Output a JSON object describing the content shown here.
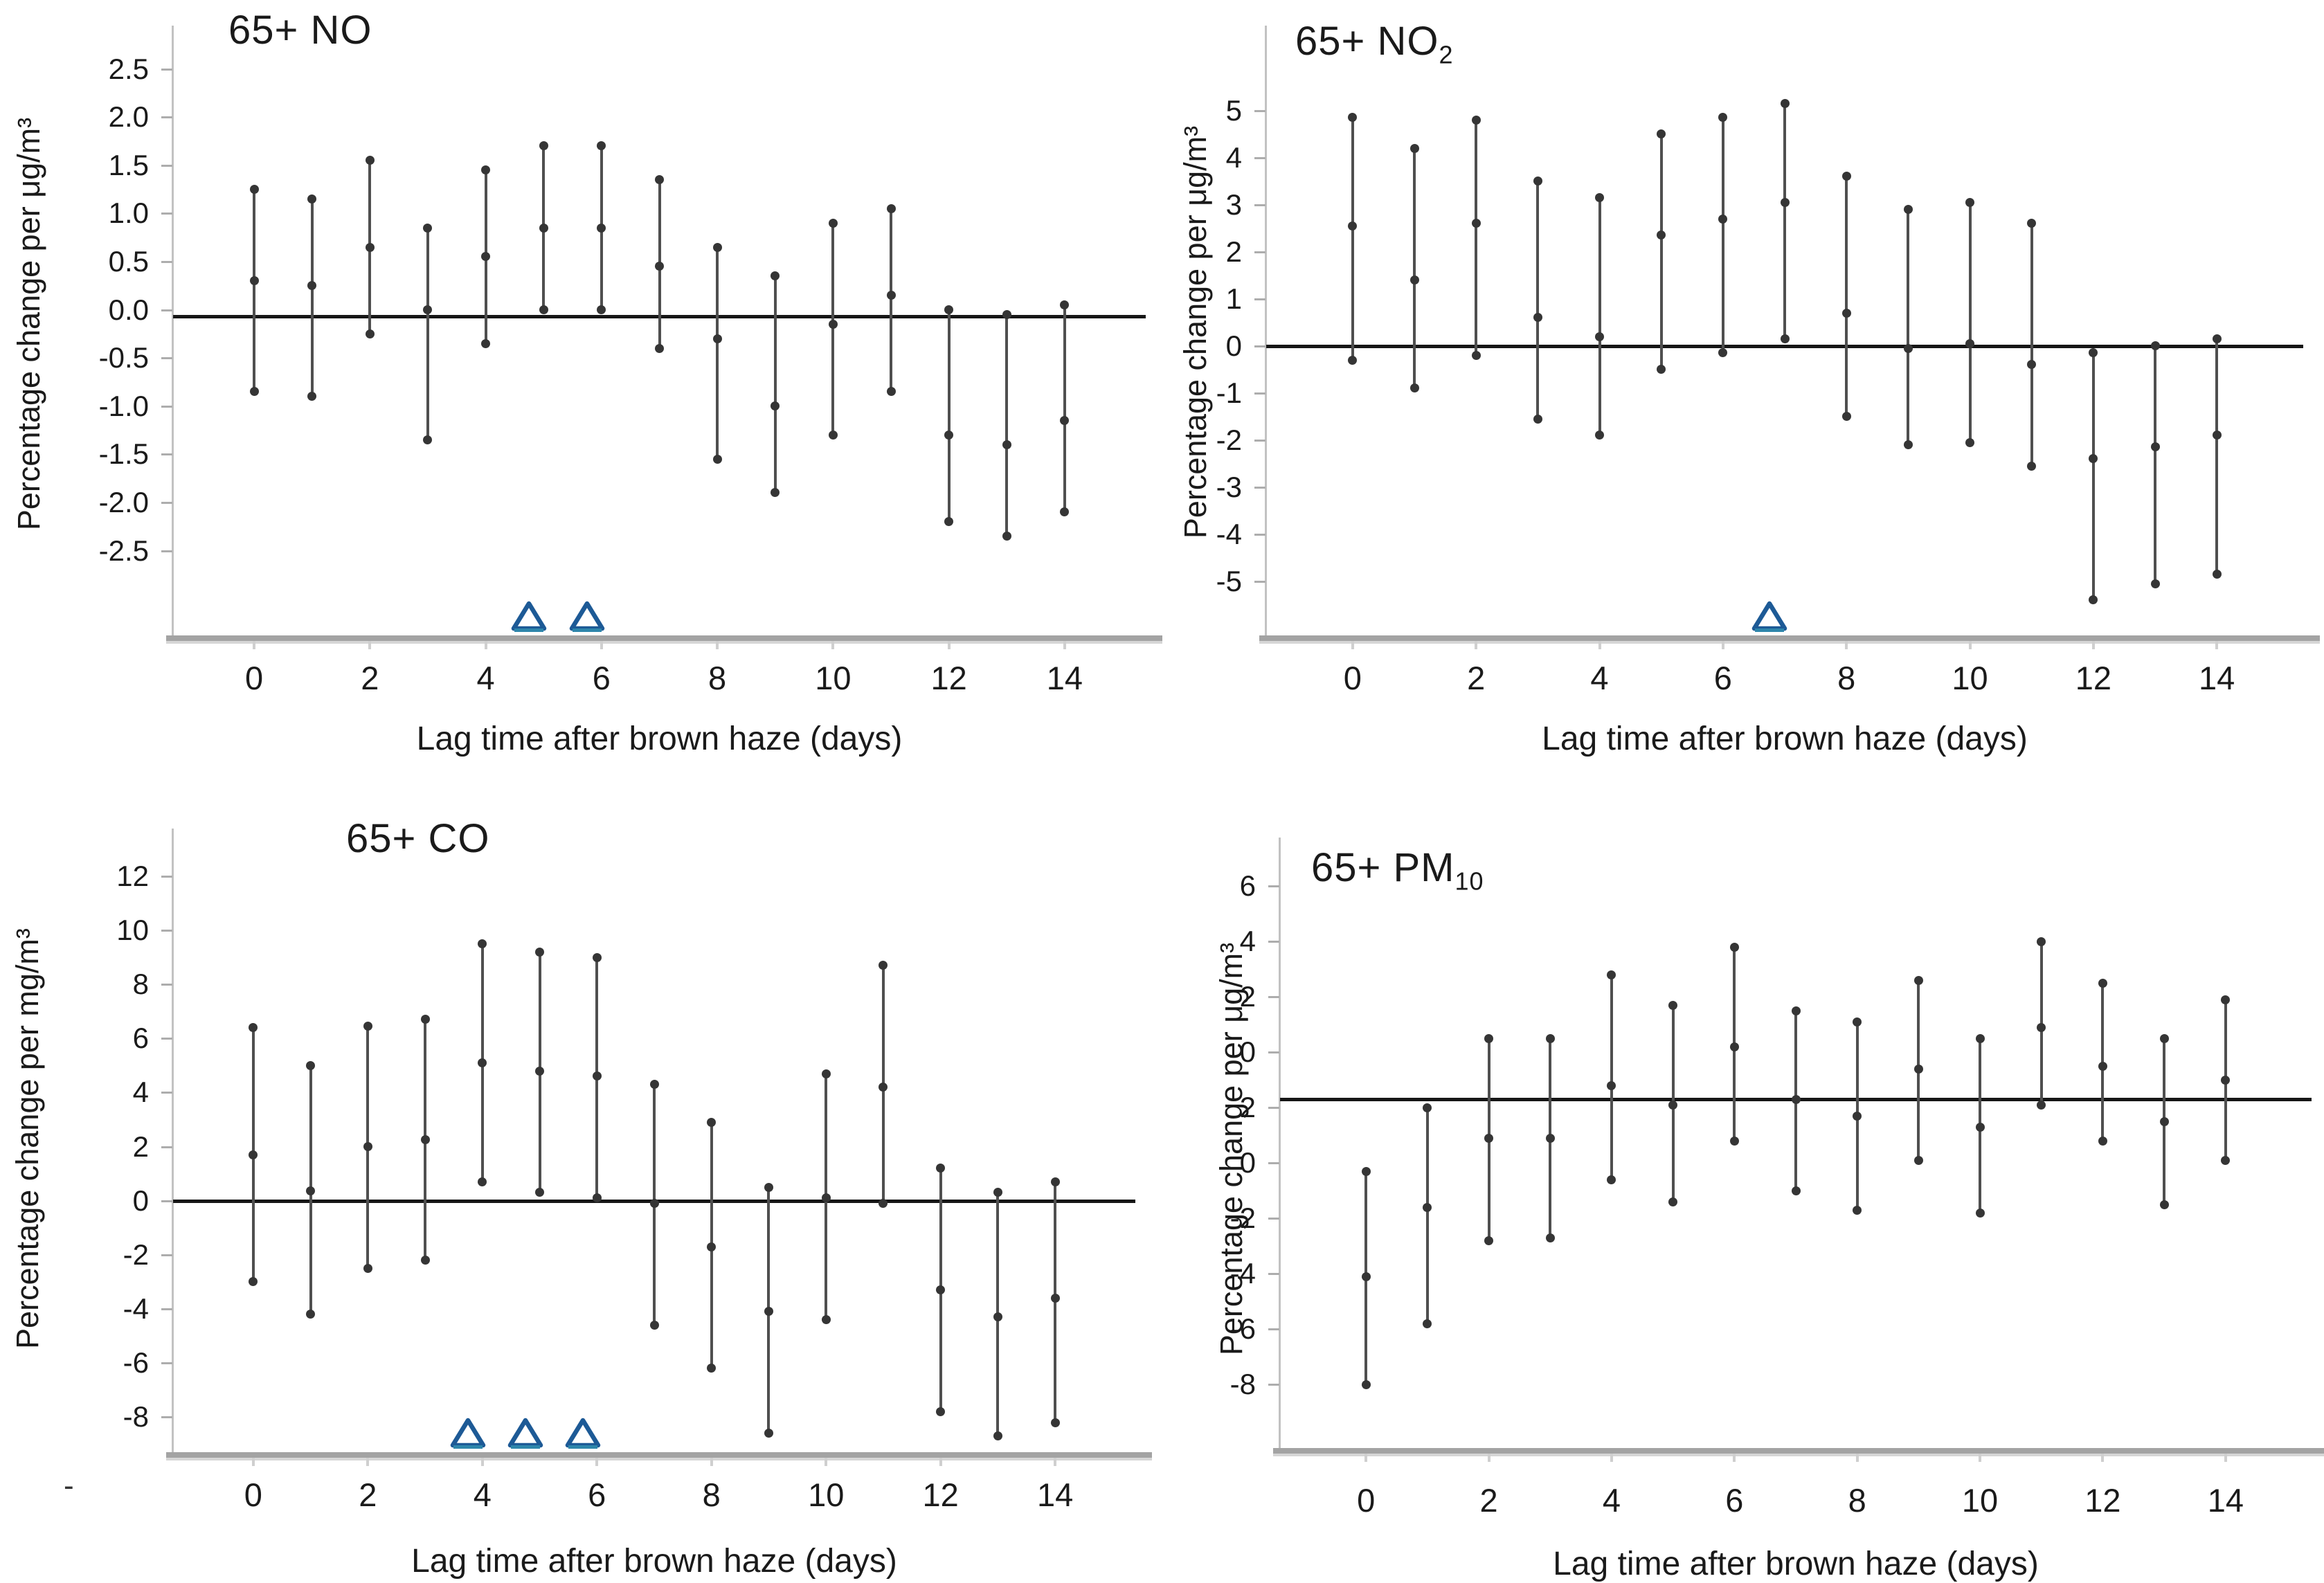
{
  "figure_title": "",
  "colors": {
    "triangle": "#1d5a96",
    "triangle_base": "#2e86ab",
    "bar": "#4f4f4f",
    "dot": "#353535",
    "zero_line": "#161616",
    "axis_band": "#a3a3a3",
    "axis_line": "#c2c2c2",
    "text": "#1a1a1a"
  },
  "chart_data": [
    {
      "type": "errorbar",
      "title": {
        "label": "65+ NO",
        "sub": ""
      },
      "ylabel": "Percentage change per μg/m³",
      "xlabel": "Lag time after brown haze (days)",
      "x": [
        0,
        1,
        2,
        3,
        4,
        5,
        6,
        7,
        8,
        9,
        10,
        11,
        12,
        13,
        14
      ],
      "upper": [
        1.25,
        1.15,
        1.55,
        0.85,
        1.45,
        1.7,
        1.7,
        1.35,
        0.65,
        0.35,
        0.9,
        1.05,
        0.0,
        -0.05,
        0.05
      ],
      "center": [
        0.3,
        0.25,
        0.65,
        0.0,
        0.55,
        0.85,
        0.85,
        0.45,
        -0.3,
        -1.0,
        -0.15,
        0.15,
        -1.3,
        -1.4,
        -1.15
      ],
      "lower": [
        -0.85,
        -0.9,
        -0.25,
        -1.35,
        -0.35,
        0.0,
        0.0,
        -0.4,
        -1.55,
        -1.9,
        -1.3,
        -0.85,
        -2.2,
        -2.35,
        -2.1
      ],
      "significant_lags": [
        5,
        6
      ],
      "yticks": [
        {
          "label": "2.5",
          "value": 2.5
        },
        {
          "label": "2.0",
          "value": 2.0
        },
        {
          "label": "1.5",
          "value": 1.5
        },
        {
          "label": "1.0",
          "value": 1.0
        },
        {
          "label": "0.5",
          "value": 0.5
        },
        {
          "label": "0.0",
          "value": 0.0
        },
        {
          "label": "-0.5",
          "value": -0.5
        },
        {
          "label": "-1.0",
          "value": -1.0
        },
        {
          "label": "-1.5",
          "value": -1.5
        },
        {
          "label": "-2.0",
          "value": -2.0
        },
        {
          "label": "-2.5",
          "value": -2.5
        }
      ],
      "xticks": [
        {
          "label": "0",
          "value": 0
        },
        {
          "label": "2",
          "value": 2
        },
        {
          "label": "4",
          "value": 4
        },
        {
          "label": "6",
          "value": 6
        },
        {
          "label": "8",
          "value": 8
        },
        {
          "label": "10",
          "value": 10
        },
        {
          "label": "12",
          "value": 12
        },
        {
          "label": "14",
          "value": 14
        }
      ],
      "ylim": [
        -3.38,
        2.82
      ],
      "xlim": [
        -1.4,
        15.4
      ],
      "zero_line": -0.07,
      "grid": false,
      "legend": null
    },
    {
      "type": "errorbar",
      "title": {
        "label": "65+ NO",
        "sub": "2"
      },
      "ylabel": "Percentage change per μg/m³",
      "xlabel": "Lag time after brown haze (days)",
      "x": [
        0,
        1,
        2,
        3,
        4,
        5,
        6,
        7,
        8,
        9,
        10,
        11,
        12,
        13,
        14
      ],
      "upper": [
        4.85,
        4.2,
        4.8,
        3.5,
        3.15,
        4.5,
        4.85,
        5.15,
        3.6,
        2.9,
        3.05,
        2.6,
        -0.15,
        0.0,
        0.15
      ],
      "center": [
        2.55,
        1.4,
        2.6,
        0.6,
        0.2,
        2.35,
        2.7,
        3.05,
        0.7,
        -0.05,
        0.05,
        -0.4,
        -2.4,
        -2.15,
        -1.9
      ],
      "lower": [
        -0.3,
        -0.9,
        -0.2,
        -1.55,
        -1.9,
        -0.5,
        -0.15,
        0.15,
        -1.5,
        -2.1,
        -2.05,
        -2.55,
        -5.4,
        -5.05,
        -4.85
      ],
      "significant_lags": [
        7
      ],
      "yticks": [
        {
          "label": "5",
          "value": 5
        },
        {
          "label": "4",
          "value": 4
        },
        {
          "label": "3",
          "value": 3
        },
        {
          "label": "2",
          "value": 2
        },
        {
          "label": "1",
          "value": 1
        },
        {
          "label": "0",
          "value": 0
        },
        {
          "label": "-1",
          "value": -1
        },
        {
          "label": "-2",
          "value": -2
        },
        {
          "label": "-3",
          "value": -3
        },
        {
          "label": "-4",
          "value": -4
        },
        {
          "label": "-5",
          "value": -5
        }
      ],
      "xticks": [
        {
          "label": "0",
          "value": 0
        },
        {
          "label": "2",
          "value": 2
        },
        {
          "label": "4",
          "value": 4
        },
        {
          "label": "6",
          "value": 6
        },
        {
          "label": "8",
          "value": 8
        },
        {
          "label": "10",
          "value": 10
        },
        {
          "label": "12",
          "value": 12
        },
        {
          "label": "14",
          "value": 14
        }
      ],
      "ylim": [
        -6.15,
        6.54
      ],
      "xlim": [
        -1.4,
        15.4
      ],
      "zero_line": 0,
      "grid": false,
      "legend": null
    },
    {
      "type": "errorbar",
      "title": {
        "label": "65+ CO",
        "sub": ""
      },
      "ylabel": "Percentage change per mg/m³",
      "xlabel": "Lag time after brown haze (days)",
      "x": [
        0,
        1,
        2,
        3,
        4,
        5,
        6,
        7,
        8,
        9,
        10,
        11,
        12,
        13,
        14
      ],
      "upper": [
        6.4,
        5.0,
        6.45,
        6.7,
        9.5,
        9.2,
        9.0,
        4.3,
        2.9,
        0.5,
        4.7,
        8.7,
        1.2,
        0.3,
        0.7
      ],
      "center": [
        1.7,
        0.35,
        2.0,
        2.25,
        5.1,
        4.8,
        4.6,
        -0.1,
        -1.7,
        -4.1,
        0.1,
        4.2,
        -3.3,
        -4.3,
        -3.6
      ],
      "lower": [
        -3.0,
        -4.2,
        -2.5,
        -2.2,
        0.7,
        0.3,
        0.1,
        -4.6,
        -6.2,
        -8.6,
        -4.4,
        -0.1,
        -7.8,
        -8.7,
        -8.2
      ],
      "significant_lags": [
        4,
        5,
        6
      ],
      "stray_mark": "-",
      "yticks": [
        {
          "label": "12",
          "value": 12
        },
        {
          "label": "10",
          "value": 10
        },
        {
          "label": "8",
          "value": 8
        },
        {
          "label": "6",
          "value": 6
        },
        {
          "label": "4",
          "value": 4
        },
        {
          "label": "2",
          "value": 2
        },
        {
          "label": "0",
          "value": 0
        },
        {
          "label": "-2",
          "value": -2
        },
        {
          "label": "-4",
          "value": -4
        },
        {
          "label": "-6",
          "value": -6
        },
        {
          "label": "-8",
          "value": -8
        }
      ],
      "xticks": [
        {
          "label": "0",
          "value": 0
        },
        {
          "label": "2",
          "value": 2
        },
        {
          "label": "4",
          "value": 4
        },
        {
          "label": "6",
          "value": 6
        },
        {
          "label": "8",
          "value": 8
        },
        {
          "label": "10",
          "value": 10
        },
        {
          "label": "12",
          "value": 12
        },
        {
          "label": "14",
          "value": 14
        }
      ],
      "ylim": [
        -9.3,
        13.3
      ],
      "xlim": [
        -1.4,
        15.4
      ],
      "zero_line": 0,
      "grid": false,
      "legend": null
    },
    {
      "type": "errorbar",
      "title": {
        "label": "65+ PM",
        "sub": "10"
      },
      "ylabel": "Percentage change per μg/m³",
      "xlabel": "Lag time after brown haze (days)",
      "x": [
        0,
        1,
        2,
        3,
        4,
        5,
        6,
        7,
        8,
        9,
        10,
        11,
        12,
        13,
        14
      ],
      "upper": [
        -0.3,
        2.0,
        4.5,
        4.5,
        6.8,
        5.7,
        7.8,
        5.5,
        5.1,
        6.6,
        4.5,
        8.0,
        6.5,
        4.5,
        5.9
      ],
      "center": [
        -4.1,
        -1.6,
        0.9,
        0.9,
        2.8,
        2.1,
        4.2,
        2.3,
        1.7,
        3.4,
        1.3,
        4.9,
        3.5,
        1.5,
        3.0
      ],
      "lower": [
        -8.0,
        -5.8,
        -2.8,
        -2.7,
        -0.6,
        -1.4,
        0.8,
        -1.0,
        -1.7,
        0.1,
        -1.8,
        2.1,
        0.8,
        -1.5,
        0.1
      ],
      "significant_lags": [],
      "axis_note": "y-axis of source figure shows duplicated label strip: 6,4,2,0 above 2,0,-2,-4,-6,-8; reference line sits at the lower-scale value 2.3",
      "yticks": [
        {
          "label": "6",
          "value": 10
        },
        {
          "label": "4",
          "value": 8
        },
        {
          "label": "2",
          "value": 6
        },
        {
          "label": "0",
          "value": 4
        },
        {
          "label": "2",
          "value": 2
        },
        {
          "label": "0",
          "value": 0
        },
        {
          "label": "-2",
          "value": -2
        },
        {
          "label": "-4",
          "value": -4
        },
        {
          "label": "-6",
          "value": -6
        },
        {
          "label": "-8",
          "value": -8
        }
      ],
      "xticks": [
        {
          "label": "0",
          "value": 0
        },
        {
          "label": "2",
          "value": 2
        },
        {
          "label": "4",
          "value": 4
        },
        {
          "label": "6",
          "value": 6
        },
        {
          "label": "8",
          "value": 8
        },
        {
          "label": "10",
          "value": 10
        },
        {
          "label": "12",
          "value": 12
        },
        {
          "label": "14",
          "value": 14
        }
      ],
      "ylim": [
        -10.3,
        11.3
      ],
      "xlim": [
        -1.4,
        15.4
      ],
      "zero_line": 2.3,
      "grid": false,
      "legend": null
    }
  ]
}
